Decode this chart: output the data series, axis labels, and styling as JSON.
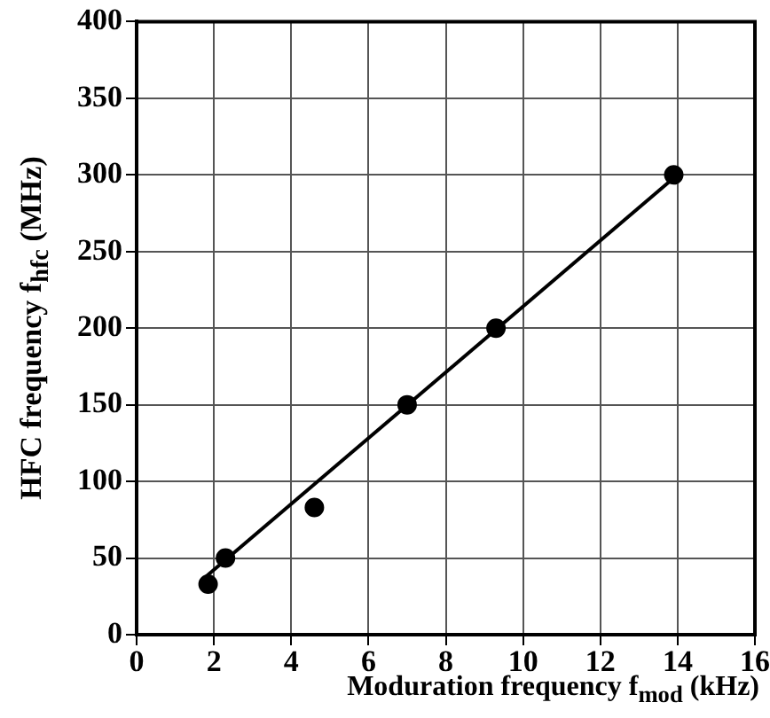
{
  "chart_data": {
    "type": "scatter",
    "xlabel": "Moduration frequency f$_{mod}$ (kHz)",
    "ylabel": "HFC frequency f$_{hfc}$ (MHz)",
    "xlim": [
      0,
      16
    ],
    "xticks": [
      0,
      2,
      4,
      6,
      8,
      10,
      12,
      14,
      16
    ],
    "ylim": [
      0,
      400
    ],
    "yticks": [
      0,
      50,
      100,
      150,
      200,
      250,
      300,
      350,
      400
    ],
    "grid": true,
    "marker": "circle",
    "series": [
      {
        "color": "#000000",
        "x": [
          1.85,
          2.3,
          4.6,
          7.0,
          9.3,
          13.9
        ],
        "values": [
          33,
          50,
          83,
          150,
          200,
          300
        ]
      },
      {
        "type": "line",
        "color": "#000000",
        "marker": "none",
        "line_style": "solid",
        "x": [
          1.8,
          13.9
        ],
        "values": [
          38,
          298
        ]
      }
    ]
  }
}
